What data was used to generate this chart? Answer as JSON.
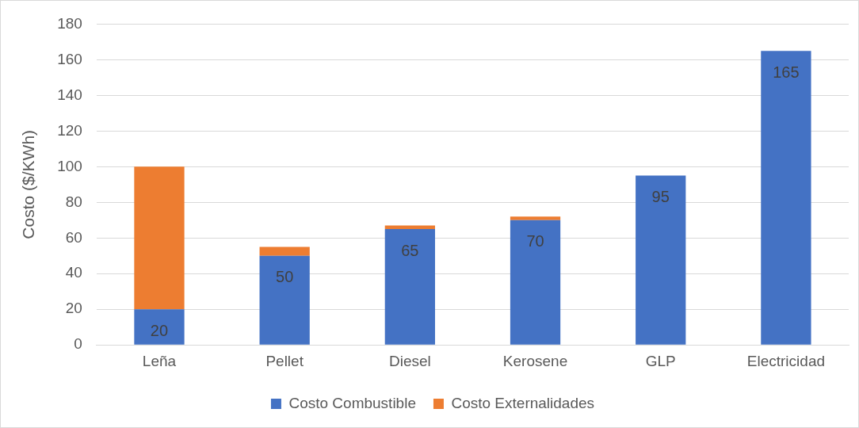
{
  "chart_data": {
    "type": "bar",
    "stacked": true,
    "ylabel": "Costo ($/KWh)",
    "categories": [
      "Leña",
      "Pellet",
      "Diesel",
      "Kerosene",
      "GLP",
      "Electricidad"
    ],
    "series": [
      {
        "name": "Costo Combustible",
        "color": "#4472c4",
        "values": [
          20,
          50,
          65,
          70,
          95,
          165
        ],
        "value_labels": [
          "20",
          "50",
          "65",
          "70",
          "95",
          "165"
        ]
      },
      {
        "name": "Costo Externalidades",
        "color": "#ed7d31",
        "values": [
          80,
          5,
          2,
          2,
          0,
          0
        ]
      }
    ],
    "ylim": [
      0,
      180
    ],
    "yticks": [
      0,
      20,
      40,
      60,
      80,
      100,
      120,
      140,
      160,
      180
    ],
    "grid": "y",
    "legend": "bottom"
  }
}
